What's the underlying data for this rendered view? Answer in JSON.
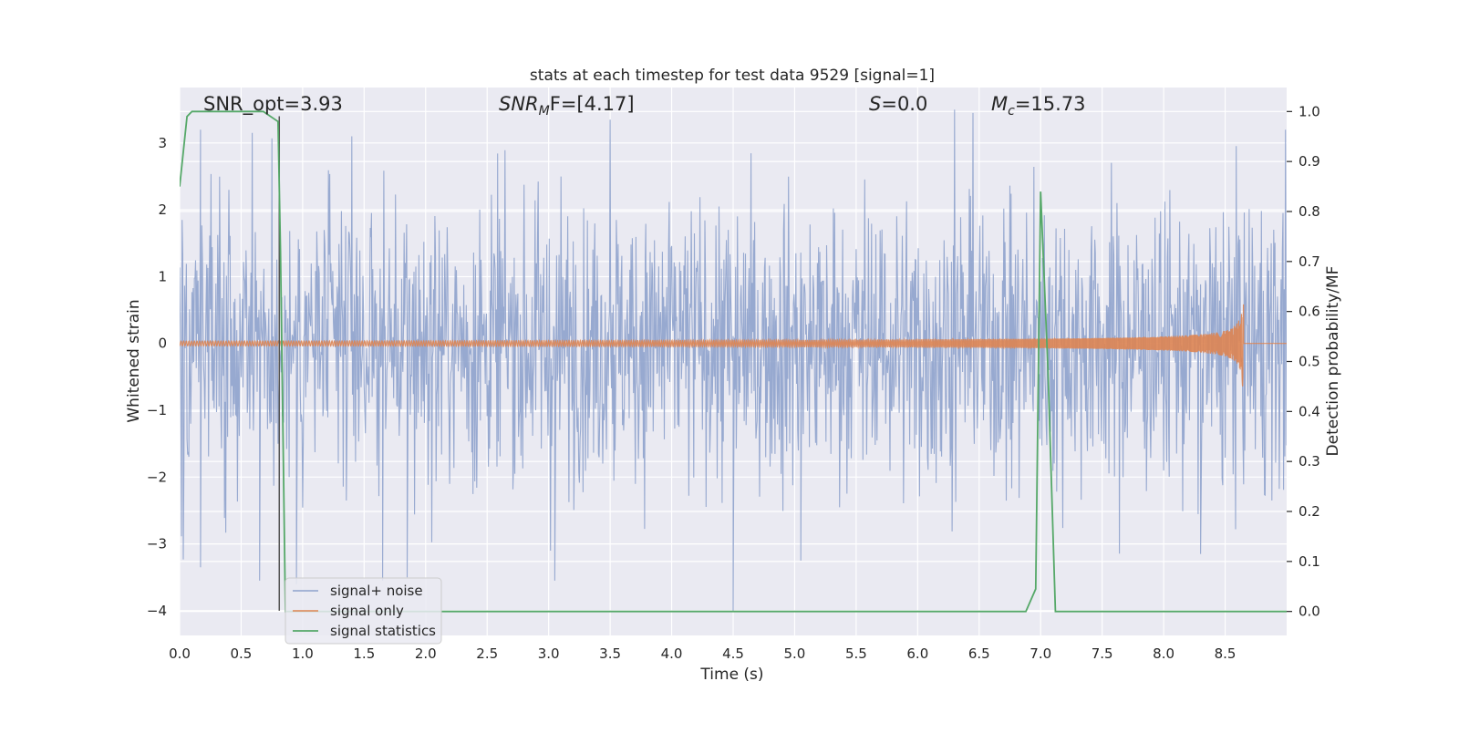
{
  "chart_data": {
    "type": "line",
    "title": "stats at each timestep for test data 9529 [signal=1]",
    "xlabel": "Time (s)",
    "ylabel": "Whitened strain",
    "y2label": "Detection probability/MF",
    "xlim": [
      0,
      9.0
    ],
    "ylim": [
      -4.37,
      3.83
    ],
    "y2lim": [
      -0.048,
      1.048
    ],
    "x_ticks": [
      0.0,
      0.5,
      1.0,
      1.5,
      2.0,
      2.5,
      3.0,
      3.5,
      4.0,
      4.5,
      5.0,
      5.5,
      6.0,
      6.5,
      7.0,
      7.5,
      8.0,
      8.5
    ],
    "x_tick_labels": [
      "0.0",
      "0.5",
      "1.0",
      "1.5",
      "2.0",
      "2.5",
      "3.0",
      "3.5",
      "4.0",
      "4.5",
      "5.0",
      "5.5",
      "6.0",
      "6.5",
      "7.0",
      "7.5",
      "8.0",
      "8.5"
    ],
    "y_ticks": [
      3,
      2,
      1,
      0,
      -1,
      -2,
      -3,
      -4
    ],
    "y_tick_labels": [
      "3",
      "2",
      "1",
      "0",
      "−1",
      "−2",
      "−3",
      "−4"
    ],
    "y2_ticks": [
      1.0,
      0.9,
      0.8,
      0.7,
      0.6,
      0.5,
      0.4,
      0.3,
      0.2,
      0.1,
      0.0
    ],
    "y2_tick_labels": [
      "1.0",
      "0.9",
      "0.8",
      "0.7",
      "0.6",
      "0.5",
      "0.4",
      "0.3",
      "0.2",
      "0.1",
      "0.0"
    ],
    "grid": true,
    "legend_position": "lower-left",
    "annotations": [
      {
        "text": "SNR_opt=3.93"
      },
      {
        "text": "SNR_MF=[4.17]",
        "italic_part": "SNR",
        "sub": "M",
        "rest": "F=[4.17]"
      },
      {
        "text": "S=0.0",
        "italic_part": "S",
        "rest": "=0.0"
      },
      {
        "text": "M_c=15.73",
        "italic_part": "M",
        "sub": "c",
        "rest": "=15.73"
      }
    ],
    "vertical_marker_x": 0.81,
    "series": [
      {
        "name": "signal+ noise",
        "color": "#8ea2cc",
        "axis": "left",
        "kind": "noise",
        "time_range": [
          0.0,
          9.0
        ],
        "std": 1.05,
        "y_range": [
          -4.0,
          3.55
        ],
        "outlier_peaks": [
          {
            "x": 0.17,
            "y": 3.2
          },
          {
            "x": 0.59,
            "y": 3.15
          },
          {
            "x": 1.4,
            "y": 3.1
          },
          {
            "x": 3.5,
            "y": 3.35
          },
          {
            "x": 6.3,
            "y": 3.5
          },
          {
            "x": 6.45,
            "y": 3.45
          },
          {
            "x": 8.99,
            "y": 3.2
          }
        ],
        "outlier_troughs": [
          {
            "x": 0.17,
            "y": -3.35
          },
          {
            "x": 0.65,
            "y": -3.55
          },
          {
            "x": 0.95,
            "y": -3.6
          },
          {
            "x": 1.65,
            "y": -3.55
          },
          {
            "x": 1.85,
            "y": -3.5
          },
          {
            "x": 3.05,
            "y": -3.55
          },
          {
            "x": 4.5,
            "y": -4.0
          },
          {
            "x": 5.05,
            "y": -3.25
          },
          {
            "x": 8.3,
            "y": -3.15
          }
        ]
      },
      {
        "name": "signal only",
        "color": "#dd8452",
        "axis": "left",
        "kind": "chirp",
        "time_range": [
          0.0,
          8.65
        ],
        "merger_time": 8.65,
        "peak_amplitude": 0.72
      },
      {
        "name": "signal statistics",
        "color": "#55a868",
        "axis": "right",
        "kind": "line",
        "x": [
          0.0,
          0.06,
          0.1,
          0.5,
          0.68,
          0.8,
          0.82,
          0.86,
          1.5,
          6.88,
          6.96,
          7.0,
          7.06,
          7.12,
          9.0
        ],
        "y": [
          0.85,
          0.99,
          1.0,
          1.0,
          1.0,
          0.98,
          0.72,
          0.0,
          0.0,
          0.0,
          0.045,
          0.84,
          0.48,
          0.0,
          0.0
        ]
      }
    ]
  }
}
